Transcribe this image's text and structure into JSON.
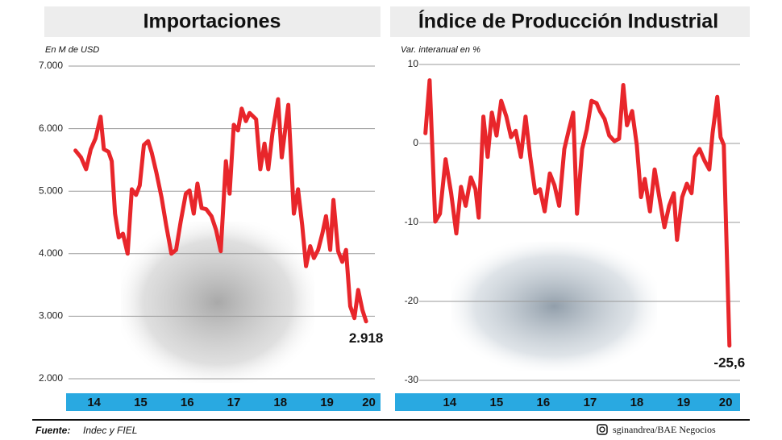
{
  "chart_data": [
    {
      "type": "line",
      "title": "Importaciones",
      "y_label": "En M de USD",
      "color": "#e8262b",
      "grid": true,
      "x": [
        14.1,
        14.22,
        14.33,
        14.43,
        14.53,
        14.64,
        14.71,
        14.81,
        14.88,
        14.95,
        15.03,
        15.12,
        15.22,
        15.31,
        15.4,
        15.48,
        15.57,
        15.66,
        15.74,
        15.84,
        15.95,
        16.05,
        16.16,
        16.26,
        16.36,
        16.47,
        16.55,
        16.64,
        16.72,
        16.81,
        16.91,
        17.02,
        17.12,
        17.22,
        17.33,
        17.41,
        17.5,
        17.59,
        17.67,
        17.76,
        17.84,
        17.98,
        18.07,
        18.16,
        18.24,
        18.33,
        18.45,
        18.53,
        18.67,
        18.79,
        18.88,
        18.97,
        19.05,
        19.14,
        19.22,
        19.31,
        19.4,
        19.48,
        19.57,
        19.64,
        19.74,
        19.83,
        19.91,
        20.0,
        20.09,
        20.17,
        20.26,
        20.34
      ],
      "values": [
        5650,
        5540,
        5350,
        5670,
        5840,
        6190,
        5670,
        5630,
        5480,
        4640,
        4260,
        4320,
        4000,
        5030,
        4940,
        5090,
        5740,
        5800,
        5610,
        5290,
        4900,
        4450,
        4000,
        4060,
        4510,
        4960,
        5010,
        4640,
        5120,
        4730,
        4710,
        4600,
        4380,
        4040,
        5480,
        4960,
        6060,
        5970,
        6320,
        6120,
        6250,
        6150,
        5350,
        5760,
        5350,
        5930,
        6470,
        5540,
        6380,
        4640,
        5030,
        4450,
        3800,
        4120,
        3930,
        4060,
        4320,
        4600,
        4060,
        4860,
        4040,
        3870,
        4060,
        3160,
        2970,
        3420,
        3100,
        2918
      ],
      "value_labels": [
        null,
        null,
        null,
        null,
        null,
        null,
        null,
        null,
        null,
        null,
        null,
        null,
        null,
        null,
        null,
        null,
        null,
        null,
        null,
        null,
        null,
        null,
        null,
        null,
        null,
        null,
        null,
        null,
        null,
        null,
        null,
        null,
        null,
        null,
        null,
        null,
        null,
        null,
        null,
        null,
        null,
        null,
        null,
        null,
        null,
        null,
        null,
        null,
        null,
        null,
        null,
        null,
        null,
        null,
        null,
        null,
        null,
        null,
        null,
        null,
        null,
        null,
        null,
        null,
        null,
        null,
        null,
        "2.918"
      ],
      "xlim": [
        13.9,
        20.65
      ],
      "xticks": [
        {
          "value": 14.5,
          "label": "14"
        },
        {
          "value": 15.5,
          "label": "15"
        },
        {
          "value": 16.5,
          "label": "16"
        },
        {
          "value": 17.5,
          "label": "17"
        },
        {
          "value": 18.5,
          "label": "18"
        },
        {
          "value": 19.5,
          "label": "19"
        },
        {
          "value": 20.4,
          "label": "20"
        }
      ],
      "ylim": [
        2000,
        7000
      ],
      "yticks": [
        {
          "value": 2000,
          "label": "2.000"
        },
        {
          "value": 3000,
          "label": "3.000"
        },
        {
          "value": 4000,
          "label": "4.000"
        },
        {
          "value": 5000,
          "label": "5.000"
        },
        {
          "value": 6000,
          "label": "6.000"
        },
        {
          "value": 7000,
          "label": "7.000"
        }
      ]
    },
    {
      "type": "line",
      "title": "Índice de Producción Industrial",
      "y_label": "Var. interanual en %",
      "color": "#e8262b",
      "grid": true,
      "x": [
        13.98,
        14.07,
        14.19,
        14.29,
        14.41,
        14.53,
        14.64,
        14.74,
        14.84,
        14.95,
        15.05,
        15.12,
        15.22,
        15.31,
        15.4,
        15.5,
        15.6,
        15.71,
        15.81,
        15.91,
        16.02,
        16.12,
        16.22,
        16.33,
        16.43,
        16.53,
        16.64,
        16.74,
        16.84,
        16.95,
        17.05,
        17.14,
        17.22,
        17.33,
        17.43,
        17.53,
        17.64,
        17.71,
        17.81,
        17.91,
        18.02,
        18.12,
        18.21,
        18.29,
        18.4,
        18.5,
        18.59,
        18.67,
        18.78,
        18.88,
        18.98,
        19.09,
        19.19,
        19.29,
        19.36,
        19.47,
        19.57,
        19.67,
        19.74,
        19.84,
        19.95,
        20.05,
        20.12,
        20.22,
        20.29,
        20.36,
        20.48
      ],
      "values": [
        1.3,
        8.0,
        -9.9,
        -8.9,
        -2.0,
        -6.3,
        -11.4,
        -5.5,
        -7.9,
        -4.3,
        -5.8,
        -9.4,
        3.4,
        -1.7,
        3.9,
        1.0,
        5.4,
        3.4,
        0.8,
        1.6,
        -1.7,
        3.4,
        -1.7,
        -6.3,
        -5.8,
        -8.6,
        -3.8,
        -5.3,
        -7.9,
        -0.7,
        1.8,
        3.9,
        -8.9,
        -0.7,
        1.8,
        5.4,
        5.1,
        4.1,
        3.1,
        1.0,
        0.3,
        0.6,
        7.4,
        2.3,
        4.1,
        -0.2,
        -6.8,
        -4.5,
        -8.6,
        -3.3,
        -6.8,
        -10.6,
        -7.9,
        -6.3,
        -12.2,
        -6.8,
        -5.1,
        -6.3,
        -1.7,
        -0.7,
        -2.2,
        -3.3,
        1.3,
        5.9,
        0.8,
        -0.2,
        -25.6
      ],
      "value_labels": [
        null,
        null,
        null,
        null,
        null,
        null,
        null,
        null,
        null,
        null,
        null,
        null,
        null,
        null,
        null,
        null,
        null,
        null,
        null,
        null,
        null,
        null,
        null,
        null,
        null,
        null,
        null,
        null,
        null,
        null,
        null,
        null,
        null,
        null,
        null,
        null,
        null,
        null,
        null,
        null,
        null,
        null,
        null,
        null,
        null,
        null,
        null,
        null,
        null,
        null,
        null,
        null,
        null,
        null,
        null,
        null,
        null,
        null,
        null,
        null,
        null,
        null,
        null,
        null,
        null,
        null,
        "-25,6"
      ],
      "xlim": [
        13.33,
        20.88
      ],
      "xticks": [
        {
          "value": 14.5,
          "label": "14"
        },
        {
          "value": 15.5,
          "label": "15"
        },
        {
          "value": 16.5,
          "label": "16"
        },
        {
          "value": 17.5,
          "label": "17"
        },
        {
          "value": 18.5,
          "label": "18"
        },
        {
          "value": 19.5,
          "label": "19"
        },
        {
          "value": 20.4,
          "label": "20"
        }
      ],
      "ylim": [
        -30,
        10
      ],
      "yticks": [
        -30,
        -20,
        -10,
        0,
        10
      ]
    }
  ],
  "footer": {
    "source_label": "Fuente:",
    "source": "Indec y FIEL",
    "credit": "sginandrea/BAE Negocios"
  }
}
